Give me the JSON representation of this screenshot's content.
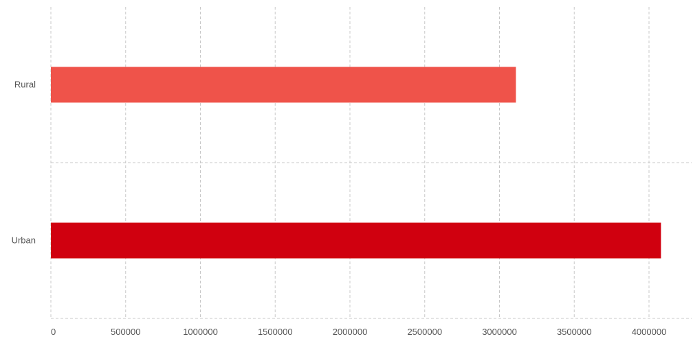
{
  "chart_data": {
    "type": "bar",
    "orientation": "horizontal",
    "categories": [
      "Rural",
      "Urban"
    ],
    "values": [
      3110000,
      4080000
    ],
    "colors": [
      "#ef534a",
      "#d0000f"
    ],
    "xlim": [
      0,
      4000000
    ],
    "x_ticks": [
      "0",
      "500000",
      "1000000",
      "1500000",
      "2000000",
      "2500000",
      "3000000",
      "3500000",
      "4000000"
    ],
    "title": "",
    "xlabel": "",
    "ylabel": "",
    "grid": true,
    "legend": "none"
  }
}
